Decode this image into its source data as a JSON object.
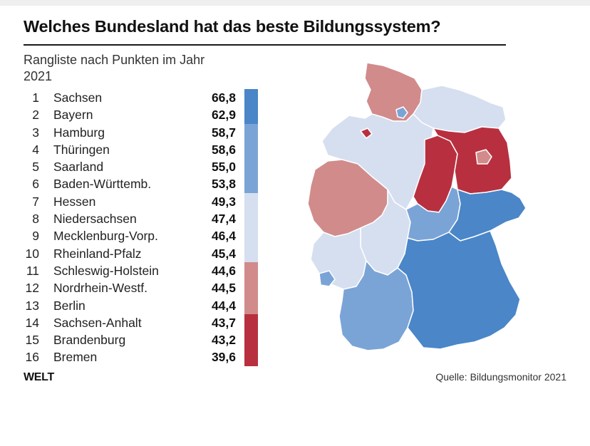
{
  "title": "Welches Bundesland hat das beste Bildungssystem?",
  "subtitle": "Rangliste nach Punkten im Jahr 2021",
  "colors": {
    "tier1": "#4a86c8",
    "tier2": "#7ba4d6",
    "tier3": "#d5dff0",
    "tier4": "#d18b8b",
    "tier5": "#b8303f"
  },
  "ranking": [
    {
      "rank": "1",
      "name": "Sachsen",
      "score": "66,8",
      "tier": "tier1"
    },
    {
      "rank": "2",
      "name": "Bayern",
      "score": "62,9",
      "tier": "tier1"
    },
    {
      "rank": "3",
      "name": "Hamburg",
      "score": "58,7",
      "tier": "tier2"
    },
    {
      "rank": "4",
      "name": "Thüringen",
      "score": "58,6",
      "tier": "tier2"
    },
    {
      "rank": "5",
      "name": "Saarland",
      "score": "55,0",
      "tier": "tier2"
    },
    {
      "rank": "6",
      "name": "Baden-Württemb.",
      "score": "53,8",
      "tier": "tier2"
    },
    {
      "rank": "7",
      "name": "Hessen",
      "score": "49,3",
      "tier": "tier3"
    },
    {
      "rank": "8",
      "name": "Niedersachsen",
      "score": "47,4",
      "tier": "tier3"
    },
    {
      "rank": "9",
      "name": "Mecklenburg-Vorp.",
      "score": "46,4",
      "tier": "tier3"
    },
    {
      "rank": "10",
      "name": "Rheinland-Pfalz",
      "score": "45,4",
      "tier": "tier3"
    },
    {
      "rank": "11",
      "name": "Schleswig-Holstein",
      "score": "44,6",
      "tier": "tier4"
    },
    {
      "rank": "12",
      "name": "Nordrhein-Westf.",
      "score": "44,5",
      "tier": "tier4"
    },
    {
      "rank": "13",
      "name": "Berlin",
      "score": "44,4",
      "tier": "tier4"
    },
    {
      "rank": "14",
      "name": "Sachsen-Anhalt",
      "score": "43,7",
      "tier": "tier5"
    },
    {
      "rank": "15",
      "name": "Brandenburg",
      "score": "43,2",
      "tier": "tier5"
    },
    {
      "rank": "16",
      "name": "Bremen",
      "score": "39,6",
      "tier": "tier5"
    }
  ],
  "map_regions": [
    {
      "id": "schleswig-holstein",
      "tier": "tier4"
    },
    {
      "id": "mecklenburg-vorpommern",
      "tier": "tier3"
    },
    {
      "id": "niedersachsen",
      "tier": "tier3"
    },
    {
      "id": "bremen",
      "tier": "tier5"
    },
    {
      "id": "hamburg",
      "tier": "tier2"
    },
    {
      "id": "sachsen-anhalt",
      "tier": "tier5"
    },
    {
      "id": "brandenburg",
      "tier": "tier5"
    },
    {
      "id": "berlin",
      "tier": "tier4"
    },
    {
      "id": "nordrhein-westfalen",
      "tier": "tier4"
    },
    {
      "id": "hessen",
      "tier": "tier3"
    },
    {
      "id": "thueringen",
      "tier": "tier2"
    },
    {
      "id": "sachsen",
      "tier": "tier1"
    },
    {
      "id": "rheinland-pfalz",
      "tier": "tier3"
    },
    {
      "id": "saarland",
      "tier": "tier2"
    },
    {
      "id": "baden-wuerttemberg",
      "tier": "tier2"
    },
    {
      "id": "bayern",
      "tier": "tier1"
    }
  ],
  "logo": "WELT",
  "source": "Quelle: Bildungsmonitor 2021"
}
